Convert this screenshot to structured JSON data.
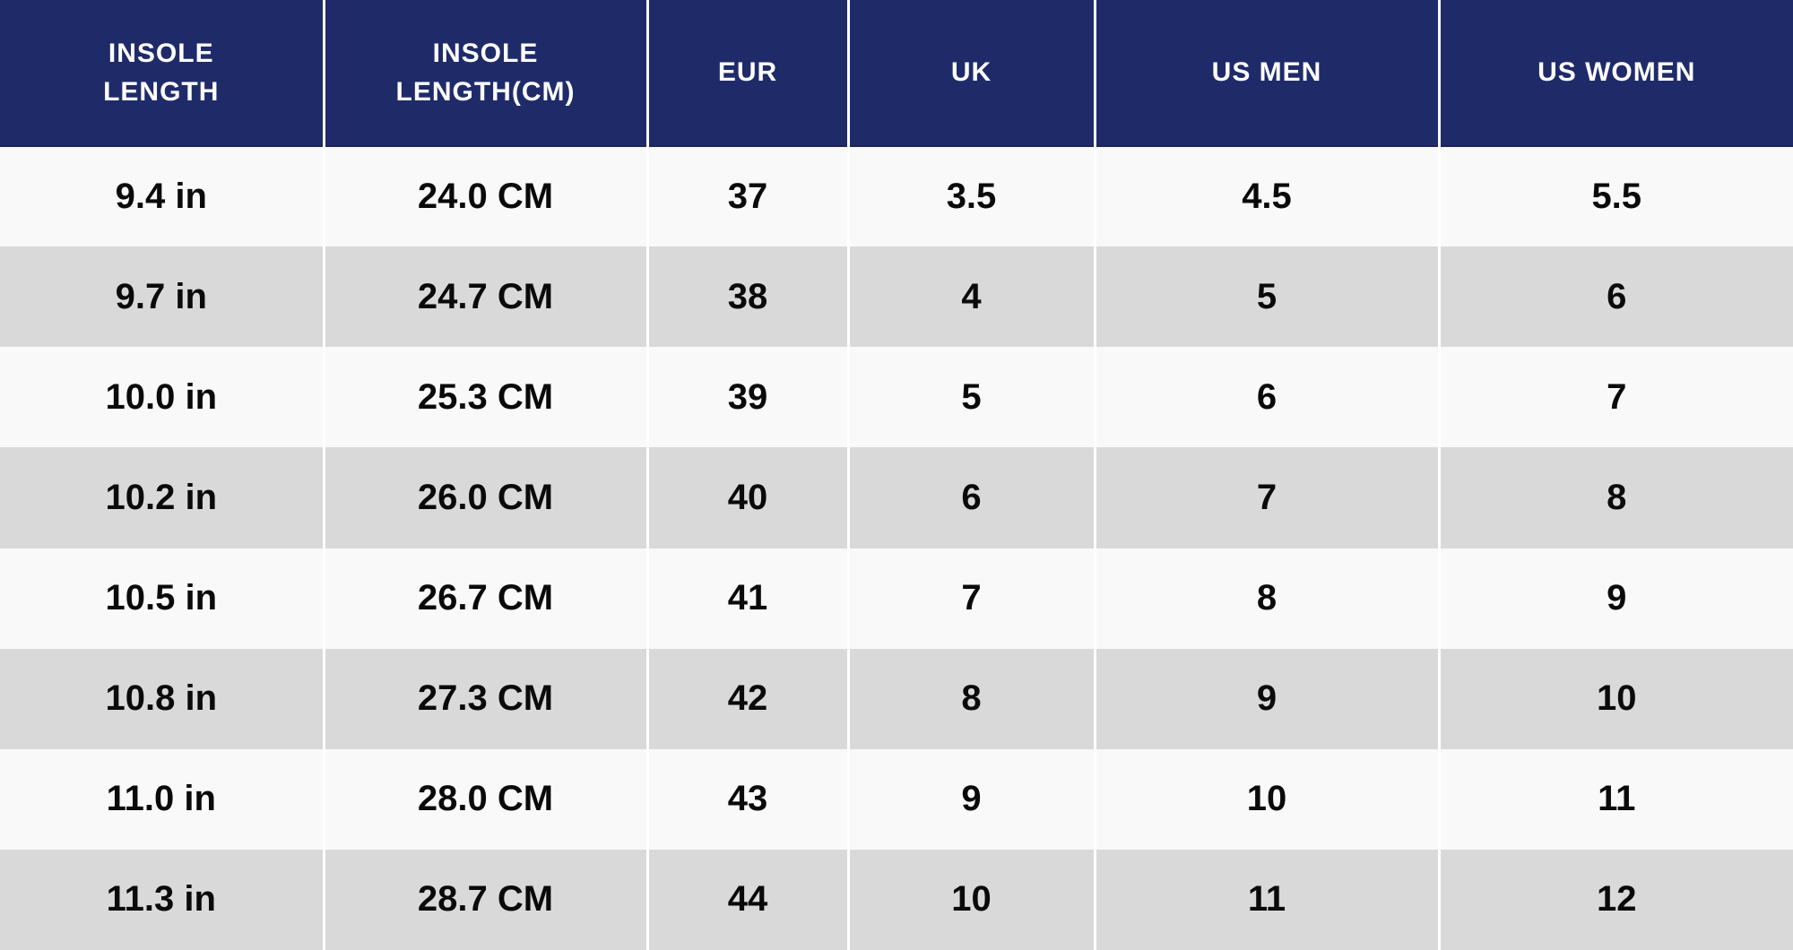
{
  "colors": {
    "header_bg": "#1F2B69",
    "header_text": "#FFFFFF",
    "row_light": "#F9F9F9",
    "row_alt": "#D9D9D9",
    "cell_text": "#0A0A0A",
    "divider": "#FFFFFF"
  },
  "table": {
    "columns": [
      {
        "slug": "insole-length",
        "label": "INSOLE LENGTH"
      },
      {
        "slug": "insole-length-cm",
        "label": "INSOLE LENGTH(CM)"
      },
      {
        "slug": "eur",
        "label": "EUR"
      },
      {
        "slug": "uk",
        "label": "UK"
      },
      {
        "slug": "us-men",
        "label": "US MEN"
      },
      {
        "slug": "us-women",
        "label": "US WOMEN"
      }
    ],
    "rows": [
      [
        "9.4 in",
        "24.0 CM",
        "37",
        "3.5",
        "4.5",
        "5.5"
      ],
      [
        "9.7 in",
        "24.7 CM",
        "38",
        "4",
        "5",
        "6"
      ],
      [
        "10.0 in",
        "25.3 CM",
        "39",
        "5",
        "6",
        "7"
      ],
      [
        "10.2 in",
        "26.0 CM",
        "40",
        "6",
        "7",
        "8"
      ],
      [
        "10.5 in",
        "26.7 CM",
        "41",
        "7",
        "8",
        "9"
      ],
      [
        "10.8 in",
        "27.3 CM",
        "42",
        "8",
        "9",
        "10"
      ],
      [
        "11.0 in",
        "28.0 CM",
        "43",
        "9",
        "10",
        "11"
      ],
      [
        "11.3 in",
        "28.7 CM",
        "44",
        "10",
        "11",
        "12"
      ]
    ]
  }
}
